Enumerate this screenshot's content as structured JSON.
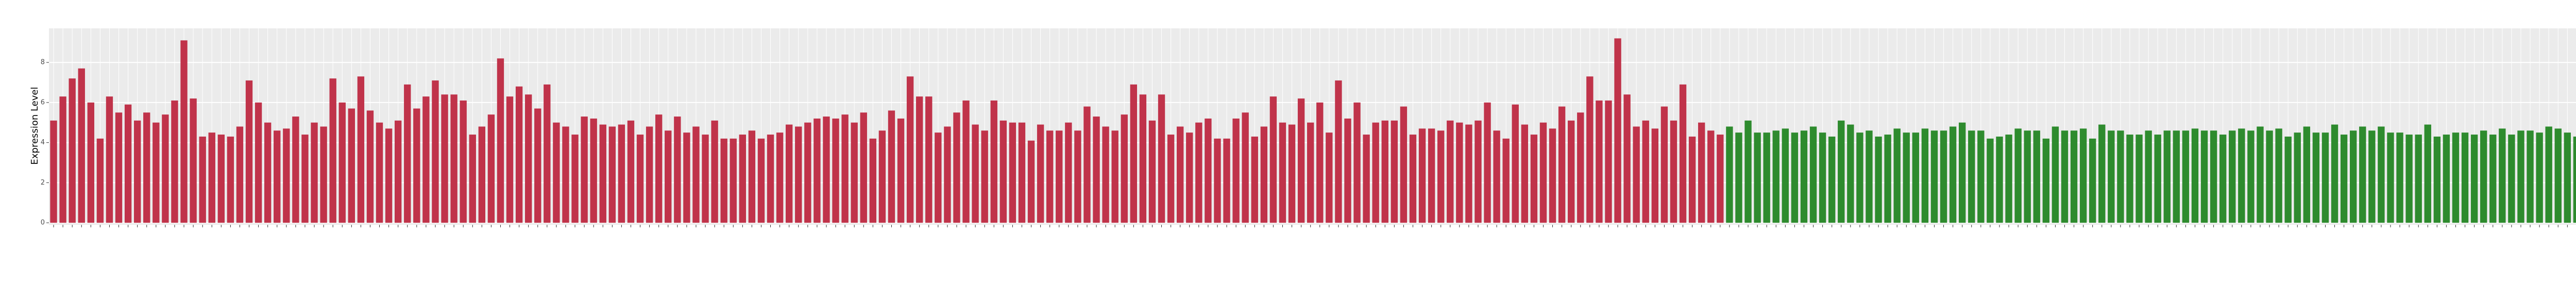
{
  "chart_data": {
    "type": "bar",
    "y_label": "Expression Level",
    "ylim": [
      -0.1,
      9.7
    ],
    "yticks": [
      0,
      2,
      4,
      6,
      8
    ],
    "grid": true,
    "background": "#ebebeb",
    "categories": [
      null,
      null,
      null,
      null,
      null,
      null,
      null,
      null,
      null,
      null,
      null,
      null,
      null,
      null,
      null,
      null,
      null,
      null,
      null,
      null,
      null,
      null,
      null,
      null,
      null,
      null,
      null,
      null,
      null,
      null,
      null,
      null,
      null,
      null,
      null,
      null,
      null,
      null,
      null,
      null,
      null,
      null,
      null,
      null,
      null,
      null,
      null,
      null,
      null,
      null,
      null,
      null,
      null,
      null,
      null,
      null,
      null,
      null,
      null,
      null,
      null,
      null,
      null,
      null,
      null,
      null,
      null,
      null,
      null,
      null,
      null,
      null,
      null,
      null,
      null,
      null,
      null,
      null,
      null,
      null,
      null,
      null,
      null,
      null,
      null,
      null,
      null,
      null,
      null,
      null,
      null,
      null,
      null,
      null,
      null,
      null,
      null,
      null,
      null,
      null,
      null,
      null,
      null,
      null,
      null,
      null,
      null,
      null,
      null,
      null,
      null,
      null,
      null,
      null,
      null,
      null,
      null,
      null,
      null,
      null,
      null,
      null,
      null,
      null,
      null,
      null,
      null,
      null,
      null,
      null,
      null,
      null,
      null,
      null,
      null,
      null,
      null,
      null,
      null,
      null,
      null,
      null,
      null,
      null,
      null,
      null,
      null,
      null,
      null,
      null,
      null,
      null,
      null,
      null,
      null,
      null,
      null,
      null,
      null,
      null,
      null,
      null,
      null,
      null,
      null,
      null,
      null,
      null,
      null,
      null,
      null,
      null,
      null,
      null,
      null,
      null,
      null,
      null,
      null,
      null,
      null,
      null,
      null,
      null,
      null,
      null,
      null,
      null,
      null,
      null,
      null,
      null,
      null,
      null,
      null,
      null,
      null,
      null,
      null,
      null,
      null,
      null,
      null,
      null,
      null,
      null,
      null,
      null,
      null,
      null,
      null,
      null,
      null,
      null,
      null,
      null,
      null,
      null,
      null,
      null,
      null,
      null,
      null,
      null,
      null,
      null,
      null,
      null,
      null,
      null,
      null,
      null,
      null,
      null,
      null,
      null,
      null,
      null,
      null,
      null,
      null,
      null,
      null,
      null,
      null,
      null,
      null,
      null,
      null,
      null,
      null,
      null,
      null,
      null,
      null,
      null,
      null,
      null,
      null,
      null,
      null,
      null,
      null,
      null,
      null,
      null,
      null,
      null,
      null,
      null,
      null,
      null,
      null,
      null,
      null,
      null,
      null,
      null,
      null,
      null
    ],
    "groups": [
      {
        "color": "#c0334a",
        "values": [
          5.1,
          6.3,
          7.2,
          7.7,
          6.0,
          4.2,
          6.3,
          5.5,
          5.9,
          5.1,
          5.5,
          5.0,
          5.4,
          6.1,
          9.1,
          6.2,
          4.3,
          4.5,
          4.4,
          4.3,
          4.8,
          7.1,
          6.0,
          5.0,
          4.6,
          4.7,
          5.3,
          4.4,
          5.0,
          4.8,
          7.2,
          6.0,
          5.7,
          7.3,
          5.6,
          5.0,
          4.7,
          5.1,
          6.9,
          5.7,
          6.3,
          7.1,
          6.4,
          6.4,
          6.1,
          4.4,
          4.8,
          5.4,
          8.2,
          6.3,
          6.8,
          6.4,
          5.7,
          6.9,
          5.0,
          4.8,
          4.4,
          5.3,
          5.2,
          4.9,
          4.8,
          4.9,
          5.1,
          4.4,
          4.8,
          5.4,
          4.6,
          5.3,
          4.5,
          4.8,
          4.4,
          5.1,
          4.2,
          4.2,
          4.4,
          4.6,
          4.2,
          4.4,
          4.5,
          4.9,
          4.8,
          5.0,
          5.2,
          5.3,
          5.2,
          5.4,
          5.0,
          5.5,
          4.2,
          4.6,
          5.6,
          5.2,
          7.3,
          6.3,
          6.3,
          4.5,
          4.8,
          5.5,
          6.1,
          4.9,
          4.6,
          6.1,
          5.1,
          5.0,
          5.0,
          4.1,
          4.9,
          4.6,
          4.6,
          5.0,
          4.6,
          5.8,
          5.3,
          4.8,
          4.6,
          5.4,
          6.9,
          6.4,
          5.1,
          6.4,
          4.4,
          4.8,
          4.5,
          5.0,
          5.2,
          4.2,
          4.2,
          5.2,
          5.5,
          4.3,
          4.8,
          6.3,
          5.0,
          4.9,
          6.2,
          5.0,
          6.0,
          4.5,
          7.1,
          5.2,
          6.0,
          4.4,
          5.0,
          5.1,
          5.1,
          5.8,
          4.4,
          4.7,
          4.7,
          4.6,
          5.1,
          5.0,
          4.9,
          5.1,
          6.0,
          4.6,
          4.2,
          5.9,
          4.9,
          4.4,
          5.0,
          4.7,
          5.8,
          5.1,
          5.5,
          7.3,
          6.1,
          6.1,
          9.2,
          6.4,
          4.8,
          5.1,
          4.7,
          5.8,
          5.1,
          6.9,
          4.3,
          5.0,
          4.6,
          4.4
        ]
      },
      {
        "color": "#2e8b2e",
        "values": [
          4.8,
          4.5,
          5.1,
          4.5,
          4.5,
          4.6,
          4.7,
          4.5,
          4.6,
          4.8,
          4.5,
          4.3,
          5.1,
          4.9,
          4.5,
          4.6,
          4.3,
          4.4,
          4.7,
          4.5,
          4.5,
          4.7,
          4.6,
          4.6,
          4.8,
          5.0,
          4.6,
          4.6,
          4.2,
          4.3,
          4.4,
          4.7,
          4.6,
          4.6,
          4.2,
          4.8,
          4.6,
          4.6,
          4.7,
          4.2,
          4.9,
          4.6,
          4.6,
          4.4,
          4.4,
          4.6,
          4.4,
          4.6,
          4.6,
          4.6,
          4.7,
          4.6,
          4.6,
          4.4,
          4.6,
          4.7,
          4.6,
          4.8,
          4.6,
          4.7,
          4.3,
          4.5,
          4.8,
          4.5,
          4.5,
          4.9,
          4.4,
          4.6,
          4.8,
          4.6,
          4.8,
          4.5,
          4.5,
          4.4,
          4.4,
          4.9,
          4.3,
          4.4,
          4.5,
          4.5,
          4.4,
          4.6,
          4.4,
          4.7,
          4.4,
          4.6,
          4.6,
          4.5,
          4.8,
          4.7,
          4.5,
          4.3,
          4.6,
          4.7,
          4.4,
          4.5,
          4.7,
          4.4,
          4.8,
          4.7
        ]
      }
    ]
  }
}
